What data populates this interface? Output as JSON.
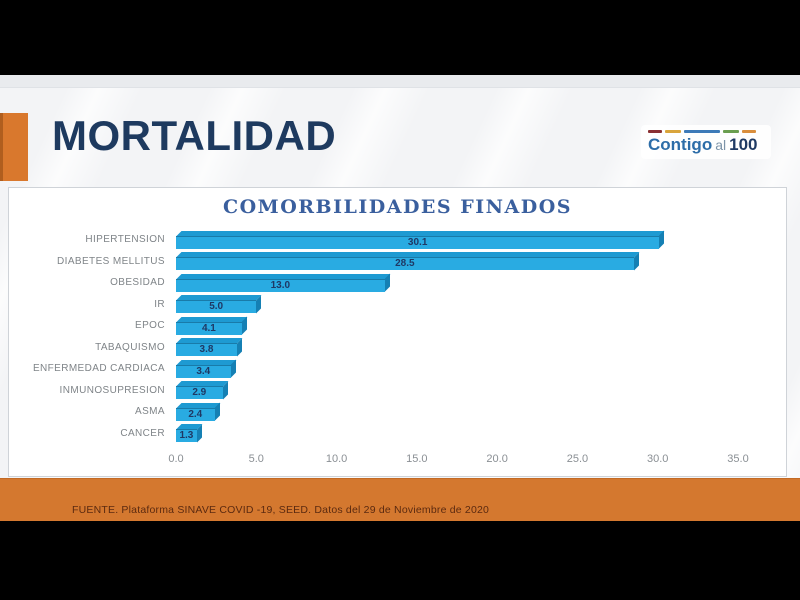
{
  "header": {
    "title": "MORTALIDAD",
    "logo": {
      "part1": "Contigo",
      "part2": "al",
      "part3": "100"
    }
  },
  "footer": {
    "source": "FUENTE. Plataforma SINAVE COVID -19, SEED. Datos del 29 de Noviembre de 2020"
  },
  "chart_data": {
    "type": "bar",
    "orientation": "horizontal",
    "title": "COMORBILIDADES FINADOS",
    "categories": [
      "HIPERTENSION",
      "DIABETES MELLITUS",
      "OBESIDAD",
      "IR",
      "EPOC",
      "TABAQUISMO",
      "ENFERMEDAD CARDIACA",
      "INMUNOSUPRESION",
      "ASMA",
      "CANCER"
    ],
    "values": [
      30.1,
      28.5,
      13.0,
      5.0,
      4.1,
      3.8,
      3.4,
      2.9,
      2.4,
      1.3
    ],
    "value_decimals": 1,
    "xlabel": "",
    "ylabel": "",
    "xlim": [
      0,
      35
    ],
    "xticks": [
      0,
      5,
      10,
      15,
      20,
      25,
      30,
      35
    ],
    "xtick_labels": [
      "0.0",
      "5.0",
      "10.0",
      "15.0",
      "20.0",
      "25.0",
      "30.0",
      "35.0"
    ],
    "grid": false,
    "legend": "none",
    "data_labels": "inside-center"
  },
  "colors": {
    "bar_front": "#29abe2",
    "bar_top": "#1e9ad2",
    "bar_side": "#1580b4",
    "value_label": "#1f3864",
    "accent_orange": "#d9782d",
    "footer_orange": "#d4782f",
    "page_title_navy": "#1e3a5f",
    "chart_title_blue": "#3a5f9e",
    "logo_dashes": [
      "#8a3033",
      "#d9a43b",
      "#3d7ab8",
      "#6a9e4f",
      "#d98e3d"
    ]
  }
}
